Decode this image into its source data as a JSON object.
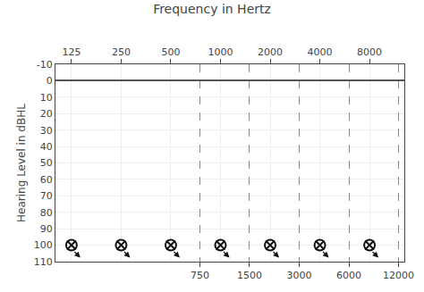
{
  "chart_data": {
    "type": "scatter",
    "title": "Frequency in Hertz",
    "ylabel": "Hearing Level in dBHL",
    "x": [
      125,
      250,
      500,
      1000,
      2000,
      4000,
      8000
    ],
    "series": [
      {
        "marker": "x",
        "values": [
          100,
          100,
          100,
          100,
          100,
          100,
          100
        ]
      },
      {
        "marker": "o",
        "values": [
          100,
          100,
          100,
          100,
          100,
          100,
          100
        ]
      },
      {
        "marker": "arrow",
        "values": [
          100,
          100,
          100,
          100,
          100,
          100,
          100
        ]
      }
    ],
    "color": "#111111",
    "log": "x",
    "xlim": [
      100,
      13000
    ],
    "xticks": [
      125,
      250,
      500,
      1000,
      2000,
      4000,
      8000
    ],
    "x2lim": [
      100,
      13000
    ],
    "x2ticks": [
      750,
      1500,
      3000,
      6000,
      12000
    ],
    "ylim": [
      110,
      -10
    ],
    "yticks": [
      -10,
      0,
      10,
      20,
      30,
      40,
      50,
      60,
      70,
      80,
      90,
      100,
      110
    ],
    "grid": true
  }
}
